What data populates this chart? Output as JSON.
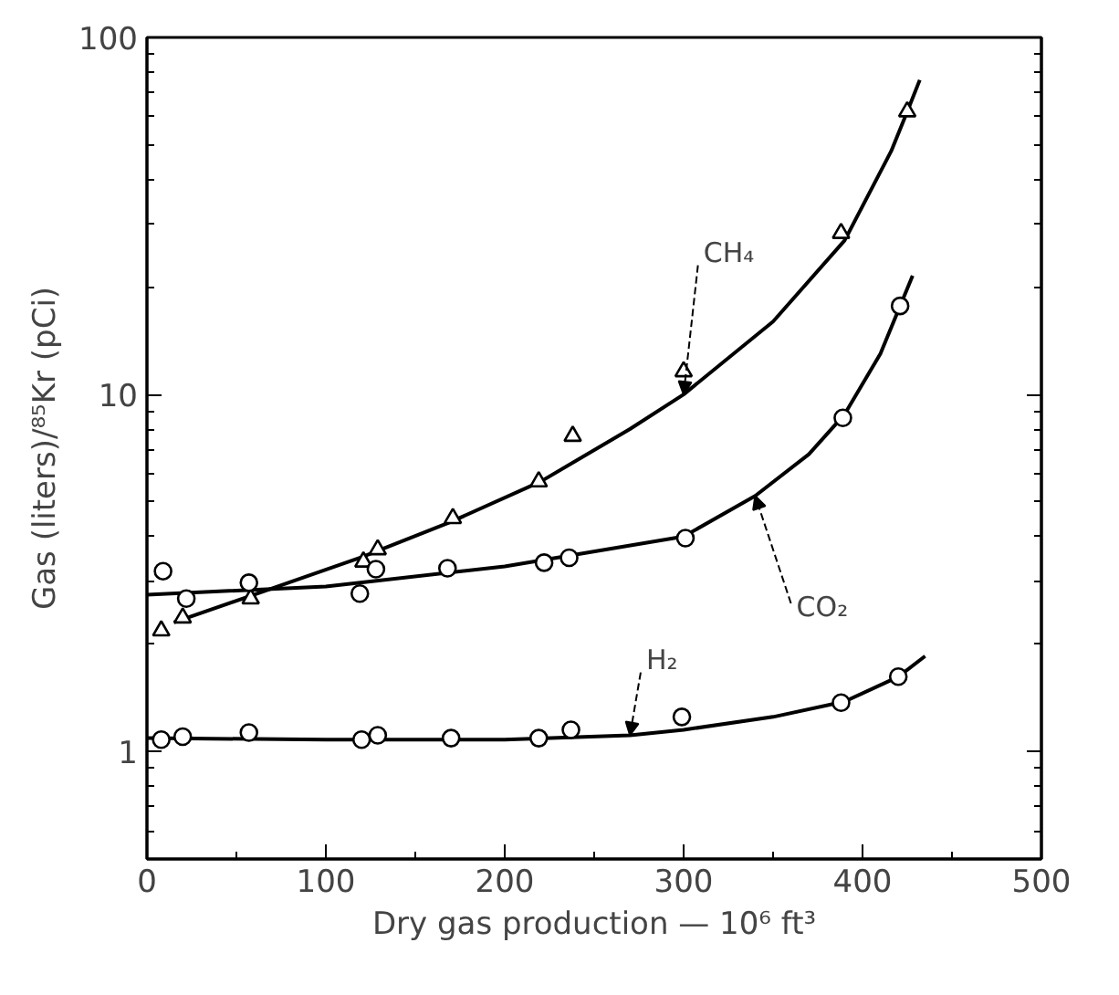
{
  "chart_data": {
    "type": "scatter",
    "xlabel": "Dry gas production — 10⁶ ft³",
    "ylabel": "Gas (liters)/⁸⁵Kr (pCi)",
    "xlim": [
      0,
      500
    ],
    "xticks": [
      0,
      100,
      200,
      300,
      400,
      500
    ],
    "ylim": [
      0.5,
      100
    ],
    "yticks": [
      1,
      10,
      100
    ],
    "log": "y",
    "grid": false,
    "series": [
      {
        "marker": "triangle",
        "color": "#000000",
        "x": [
          8,
          20,
          58,
          121,
          129,
          171,
          219,
          238,
          300,
          388,
          425
        ],
        "values": [
          2.18,
          2.37,
          2.68,
          3.4,
          3.68,
          4.5,
          5.7,
          7.65,
          11.6,
          28.3,
          62
        ]
      },
      {
        "marker": "circle",
        "color": "#000000",
        "x": [
          9,
          22,
          57,
          119,
          128,
          168,
          222,
          236,
          301,
          389,
          421
        ],
        "values": [
          3.2,
          2.68,
          2.97,
          2.77,
          3.24,
          3.26,
          3.38,
          3.49,
          3.96,
          8.6,
          17.7
        ]
      },
      {
        "marker": "circle",
        "color": "#000000",
        "x": [
          8,
          20,
          57,
          120,
          129,
          170,
          219,
          237,
          299,
          388,
          420
        ],
        "values": [
          1.08,
          1.1,
          1.13,
          1.08,
          1.11,
          1.09,
          1.09,
          1.15,
          1.25,
          1.37,
          1.62
        ]
      },
      {
        "type": "line",
        "color": "#000000",
        "x": [
          15,
          60,
          120,
          170,
          220,
          270,
          300,
          350,
          390,
          416,
          425,
          432
        ],
        "values": [
          2.3,
          2.75,
          3.5,
          4.4,
          5.7,
          8,
          10,
          16,
          27,
          48,
          62,
          76
        ]
      },
      {
        "type": "line",
        "color": "#000000",
        "x": [
          0,
          100,
          200,
          300,
          340,
          370,
          390,
          410,
          421,
          428
        ],
        "values": [
          2.75,
          2.9,
          3.3,
          4.0,
          5.2,
          6.8,
          8.8,
          13,
          17.7,
          21.5
        ]
      },
      {
        "type": "line",
        "color": "#000000",
        "x": [
          0,
          100,
          200,
          270,
          300,
          350,
          390,
          420,
          435
        ],
        "values": [
          1.09,
          1.08,
          1.08,
          1.11,
          1.15,
          1.25,
          1.38,
          1.62,
          1.85
        ]
      }
    ],
    "annotations": [
      {
        "text": "CH₄",
        "x": 300,
        "y": 10
      },
      {
        "text": "CO₂",
        "x": 340,
        "y": 5.2
      },
      {
        "text": "H₂",
        "x": 270,
        "y": 1.11
      }
    ]
  }
}
